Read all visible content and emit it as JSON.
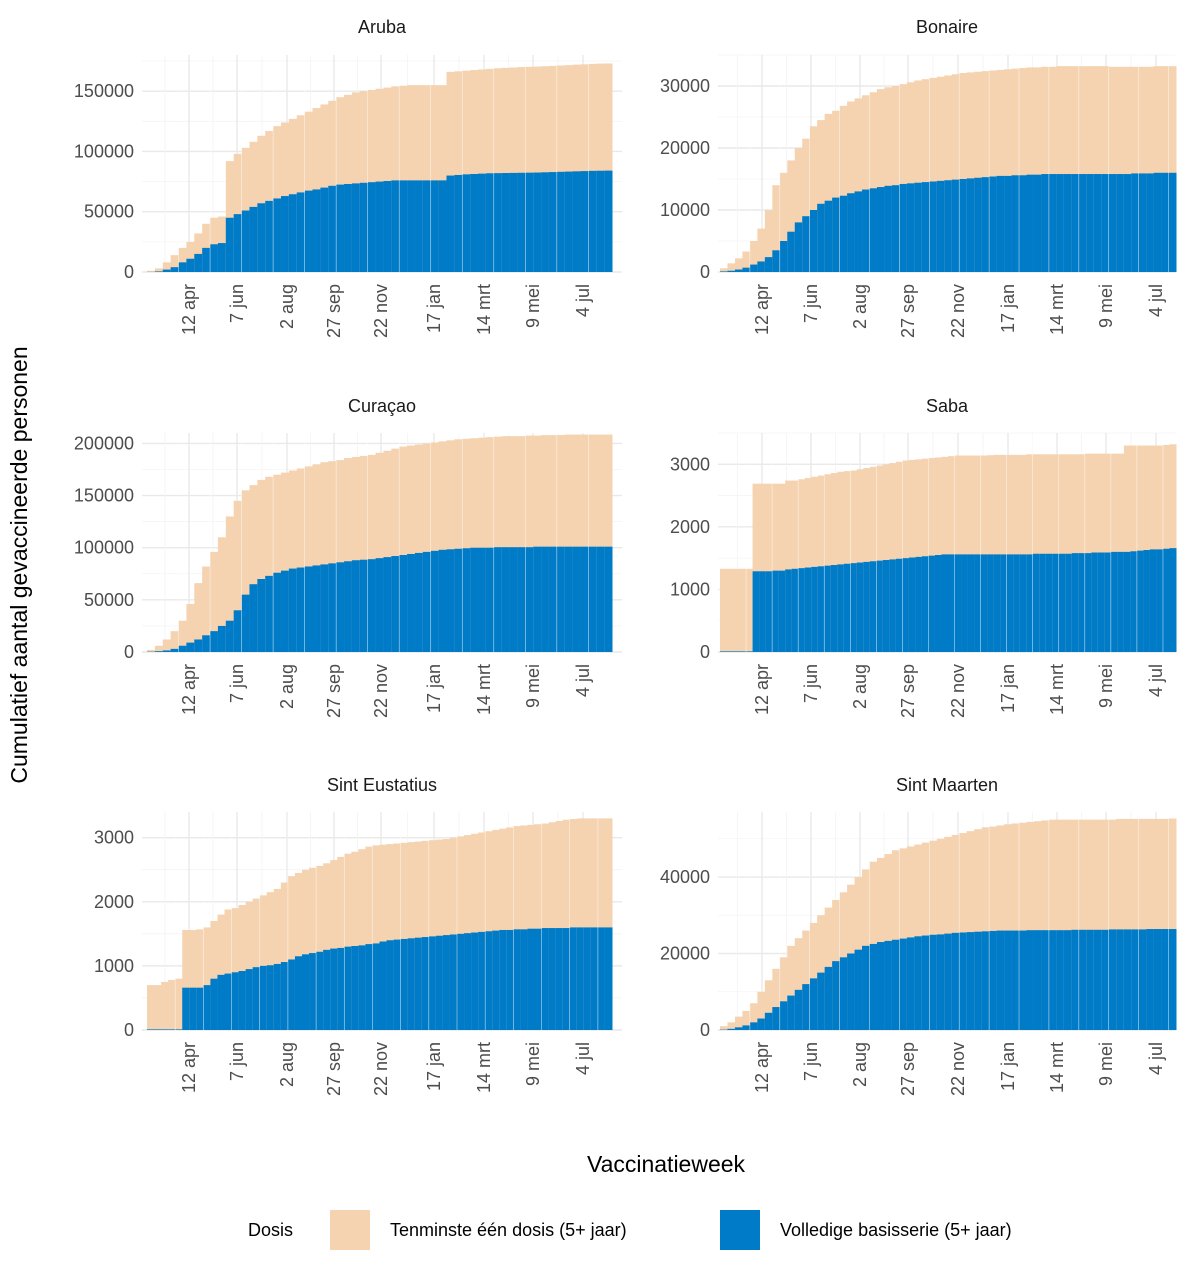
{
  "chart_data": {
    "type": "bar",
    "stacking": "overlay",
    "xlabel": "Vaccinatieweek",
    "ylabel": "Cumulatief aantal gevaccineerde personen",
    "x_ticks": [
      "12 apr",
      "7 jun",
      "2 aug",
      "27 sep",
      "22 nov",
      "17 jan",
      "14 mrt",
      "9 mei",
      "4 jul"
    ],
    "legend": {
      "title": "Dosis",
      "position": "bottom",
      "entries": [
        {
          "label": "Tenminste één dosis (5+ jaar)",
          "color": "#F5D3B0"
        },
        {
          "label": "Volledige basisserie (5+ jaar)",
          "color": "#007BC7"
        }
      ]
    },
    "grid": true,
    "facets": [
      {
        "title": "Aruba",
        "y_ticks": [
          "0",
          "50000",
          "100000",
          "150000"
        ],
        "ylim": [
          0,
          180000
        ],
        "start_week": 0,
        "one_dose": [
          1000,
          3000,
          8000,
          14000,
          20000,
          25000,
          32000,
          40000,
          45000,
          46000,
          92000,
          98000,
          103000,
          108000,
          113000,
          117000,
          121000,
          124000,
          127000,
          130000,
          133000,
          136000,
          139000,
          142000,
          145000,
          147000,
          149000,
          150000,
          151000,
          152000,
          153000,
          154000,
          154500,
          155000,
          155000,
          155000,
          155000,
          155000,
          166000,
          166500,
          167000,
          167500,
          168000,
          168500,
          169000,
          169300,
          169600,
          170000,
          170200,
          170400,
          170700,
          171000,
          171300,
          171600,
          172000,
          172300,
          172600,
          172900,
          173000
        ],
        "full_series": [
          100,
          500,
          2000,
          4000,
          8000,
          11000,
          15000,
          20000,
          23000,
          24000,
          45000,
          48000,
          51000,
          54000,
          57000,
          59000,
          61000,
          63000,
          64500,
          66000,
          67500,
          68500,
          70000,
          71500,
          72500,
          73000,
          73500,
          74000,
          74500,
          75000,
          75500,
          76000,
          76000,
          76000,
          76000,
          76000,
          76000,
          76000,
          80000,
          80500,
          81000,
          81300,
          81600,
          81900,
          82000,
          82100,
          82200,
          82300,
          82400,
          82500,
          82700,
          82900,
          83100,
          83300,
          83500,
          83700,
          83900,
          84000,
          84100
        ]
      },
      {
        "title": "Bonaire",
        "y_ticks": [
          "0",
          "10000",
          "20000",
          "30000"
        ],
        "ylim": [
          0,
          35000
        ],
        "start_week": 0,
        "one_dose": [
          600,
          1400,
          2200,
          3300,
          5000,
          7000,
          10000,
          14000,
          16000,
          18000,
          20000,
          21500,
          23500,
          24500,
          25500,
          26000,
          26800,
          27500,
          28000,
          28500,
          29000,
          29500,
          29800,
          30000,
          30300,
          30600,
          30900,
          31100,
          31300,
          31500,
          31700,
          31900,
          32100,
          32200,
          32300,
          32400,
          32500,
          32600,
          32700,
          32800,
          32900,
          33000,
          33000,
          33100,
          33100,
          33200,
          33200,
          33200,
          33200,
          33200,
          33200,
          33200,
          33100,
          33100,
          33100,
          33100,
          33100,
          33100,
          33200,
          33200,
          33200
        ],
        "full_series": [
          100,
          200,
          400,
          700,
          1200,
          1700,
          2400,
          3500,
          5000,
          6500,
          8000,
          9000,
          10000,
          11000,
          11500,
          12000,
          12300,
          12700,
          13000,
          13300,
          13500,
          13700,
          13900,
          14000,
          14200,
          14300,
          14400,
          14500,
          14600,
          14700,
          14800,
          14900,
          15000,
          15100,
          15200,
          15300,
          15400,
          15500,
          15500,
          15600,
          15600,
          15700,
          15700,
          15800,
          15800,
          15800,
          15800,
          15800,
          15800,
          15800,
          15800,
          15800,
          15800,
          15800,
          15800,
          15900,
          15900,
          15900,
          16000,
          16000,
          16000
        ]
      },
      {
        "title": "Curaçao",
        "y_ticks": [
          "0",
          "50000",
          "100000",
          "150000",
          "200000"
        ],
        "ylim": [
          0,
          210000
        ],
        "start_week": 0,
        "one_dose": [
          2000,
          6000,
          12000,
          20000,
          30000,
          46000,
          66000,
          82000,
          96000,
          110000,
          130000,
          145000,
          155000,
          160000,
          165000,
          168000,
          170000,
          172000,
          174000,
          176000,
          178000,
          180000,
          182000,
          183000,
          184000,
          186000,
          187000,
          188000,
          189000,
          191000,
          193000,
          195000,
          197000,
          198000,
          199000,
          200000,
          201000,
          202000,
          203000,
          204000,
          204500,
          205000,
          205500,
          206000,
          206500,
          207000,
          207000,
          207000,
          207500,
          207500,
          208000,
          208000,
          208000,
          208500,
          208500,
          208500,
          208500,
          208500,
          208500
        ],
        "full_series": [
          300,
          800,
          1500,
          3000,
          6000,
          9000,
          12000,
          16000,
          20000,
          25000,
          30000,
          40000,
          55000,
          65000,
          70000,
          73000,
          76000,
          78000,
          80000,
          81000,
          82000,
          83000,
          84000,
          85000,
          86000,
          87000,
          88000,
          88500,
          89000,
          90000,
          91000,
          92000,
          93000,
          94000,
          95000,
          96000,
          97000,
          98000,
          98500,
          99000,
          99500,
          100000,
          100000,
          100000,
          100500,
          100500,
          100500,
          100500,
          100500,
          101000,
          101000,
          101000,
          101000,
          101000,
          101000,
          101000,
          101000,
          101000,
          101000
        ]
      },
      {
        "title": "Saba",
        "y_ticks": [
          "0",
          "1000",
          "2000",
          "3000"
        ],
        "ylim": [
          0,
          3500
        ],
        "start_week": 0,
        "one_dose": [
          1330,
          1330,
          1330,
          1330,
          1330,
          2690,
          2690,
          2690,
          2690,
          2690,
          2740,
          2740,
          2760,
          2780,
          2800,
          2820,
          2840,
          2860,
          2880,
          2890,
          2900,
          2920,
          2940,
          2960,
          2980,
          3000,
          3020,
          3040,
          3060,
          3070,
          3080,
          3090,
          3100,
          3110,
          3120,
          3130,
          3140,
          3140,
          3140,
          3140,
          3140,
          3145,
          3150,
          3150,
          3150,
          3150,
          3150,
          3160,
          3160,
          3160,
          3160,
          3160,
          3160,
          3160,
          3160,
          3160,
          3170,
          3170,
          3170,
          3170,
          3170,
          3170,
          3300,
          3300,
          3300,
          3300,
          3300,
          3300,
          3310,
          3320
        ],
        "full_series": [
          10,
          10,
          10,
          10,
          10,
          1290,
          1290,
          1290,
          1300,
          1300,
          1320,
          1330,
          1340,
          1350,
          1360,
          1370,
          1380,
          1390,
          1400,
          1410,
          1420,
          1430,
          1440,
          1450,
          1460,
          1470,
          1480,
          1490,
          1500,
          1510,
          1520,
          1530,
          1540,
          1550,
          1560,
          1560,
          1560,
          1560,
          1560,
          1560,
          1560,
          1560,
          1560,
          1560,
          1560,
          1560,
          1560,
          1560,
          1570,
          1570,
          1570,
          1570,
          1570,
          1570,
          1580,
          1580,
          1580,
          1590,
          1590,
          1590,
          1600,
          1600,
          1600,
          1610,
          1620,
          1630,
          1640,
          1640,
          1650,
          1660
        ]
      },
      {
        "title": "Sint Eustatius",
        "y_ticks": [
          "0",
          "1000",
          "2000",
          "3000"
        ],
        "ylim": [
          0,
          3400
        ],
        "start_week": 0,
        "one_dose": [
          700,
          700,
          750,
          780,
          800,
          1560,
          1560,
          1570,
          1600,
          1700,
          1800,
          1880,
          1900,
          1950,
          2000,
          2050,
          2100,
          2150,
          2200,
          2300,
          2400,
          2450,
          2500,
          2530,
          2560,
          2600,
          2650,
          2700,
          2750,
          2780,
          2820,
          2860,
          2880,
          2890,
          2900,
          2910,
          2920,
          2930,
          2940,
          2950,
          2960,
          2970,
          2980,
          3000,
          3020,
          3040,
          3060,
          3080,
          3100,
          3120,
          3140,
          3160,
          3180,
          3190,
          3200,
          3210,
          3220,
          3240,
          3260,
          3280,
          3290,
          3300,
          3300,
          3300,
          3300,
          3300
        ],
        "full_series": [
          10,
          10,
          10,
          10,
          10,
          660,
          660,
          660,
          700,
          800,
          860,
          880,
          900,
          920,
          950,
          980,
          1000,
          1010,
          1030,
          1060,
          1100,
          1150,
          1180,
          1200,
          1220,
          1250,
          1270,
          1280,
          1300,
          1310,
          1320,
          1340,
          1350,
          1380,
          1400,
          1410,
          1420,
          1430,
          1440,
          1450,
          1460,
          1470,
          1480,
          1490,
          1500,
          1510,
          1520,
          1530,
          1540,
          1550,
          1560,
          1560,
          1570,
          1570,
          1580,
          1580,
          1590,
          1590,
          1590,
          1590,
          1600,
          1600,
          1600,
          1600,
          1600,
          1600
        ]
      },
      {
        "title": "Sint Maarten",
        "y_ticks": [
          "0",
          "20000",
          "40000"
        ],
        "ylim": [
          0,
          57000
        ],
        "start_week": 0,
        "one_dose": [
          1000,
          2000,
          3500,
          5000,
          7000,
          10000,
          13000,
          16000,
          19000,
          22000,
          24000,
          26000,
          28000,
          30000,
          32000,
          34000,
          36000,
          38000,
          40000,
          42000,
          44000,
          45000,
          46000,
          47000,
          47500,
          48000,
          48500,
          49000,
          49500,
          50000,
          50500,
          51000,
          51500,
          52000,
          52500,
          53000,
          53200,
          53500,
          53800,
          54000,
          54200,
          54400,
          54600,
          54800,
          55000,
          55000,
          55000,
          55000,
          55000,
          55000,
          55000,
          55000,
          55000,
          55200,
          55200,
          55200,
          55200,
          55200,
          55200,
          55200,
          55300
        ],
        "full_series": [
          100,
          300,
          700,
          1200,
          2000,
          3000,
          4500,
          6000,
          7500,
          9000,
          10500,
          12000,
          13500,
          15000,
          16500,
          18000,
          19000,
          20000,
          21000,
          22000,
          22500,
          23000,
          23300,
          23600,
          23900,
          24200,
          24500,
          24700,
          24900,
          25000,
          25200,
          25400,
          25500,
          25600,
          25700,
          25800,
          25900,
          26000,
          26000,
          26000,
          26000,
          26100,
          26100,
          26100,
          26100,
          26100,
          26100,
          26200,
          26200,
          26200,
          26200,
          26200,
          26300,
          26300,
          26300,
          26300,
          26300,
          26400,
          26400,
          26400,
          26400
        ]
      }
    ]
  }
}
